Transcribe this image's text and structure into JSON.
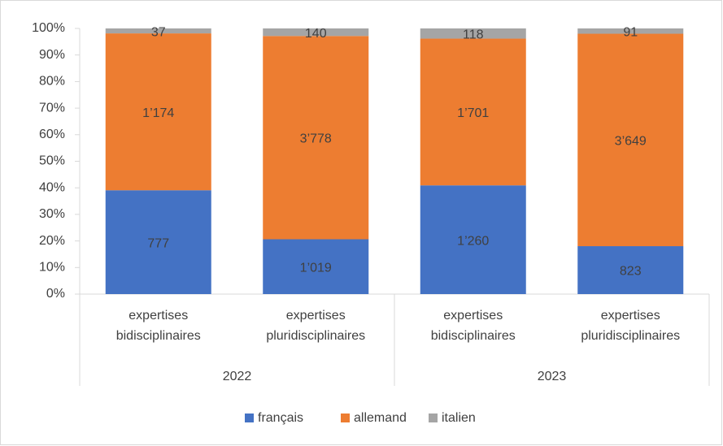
{
  "chart_data": {
    "type": "stacked_bar_100",
    "categories": [
      "expertises bidisciplinaires",
      "expertises pluridisciplinaires",
      "expertises bidisciplinaires",
      "expertises pluridisciplinaires"
    ],
    "groups": [
      "2022",
      "2023"
    ],
    "series": [
      {
        "name": "français",
        "color": "#4472c4",
        "values": [
          777,
          1019,
          1260,
          823
        ],
        "value_labels": [
          "777",
          "1’019",
          "1’260",
          "823"
        ]
      },
      {
        "name": "allemand",
        "color": "#ed7d31",
        "values": [
          1174,
          3778,
          1701,
          3649
        ],
        "value_labels": [
          "1’174",
          "3’778",
          "1’701",
          "3’649"
        ]
      },
      {
        "name": "italien",
        "color": "#a5a5a5",
        "values": [
          37,
          140,
          118,
          91
        ],
        "value_labels": [
          "37",
          "140",
          "118",
          "91"
        ]
      }
    ],
    "ylim": [
      0,
      100
    ],
    "yticks": [
      {
        "value": 0,
        "label": "0%"
      },
      {
        "value": 10,
        "label": "10%"
      },
      {
        "value": 20,
        "label": "20%"
      },
      {
        "value": 30,
        "label": "30%"
      },
      {
        "value": 40,
        "label": "40%"
      },
      {
        "value": 50,
        "label": "50%"
      },
      {
        "value": 60,
        "label": "60%"
      },
      {
        "value": 70,
        "label": "70%"
      },
      {
        "value": 80,
        "label": "80%"
      },
      {
        "value": 90,
        "label": "90%"
      },
      {
        "value": 100,
        "label": "100%"
      }
    ],
    "legend": "bottom"
  }
}
